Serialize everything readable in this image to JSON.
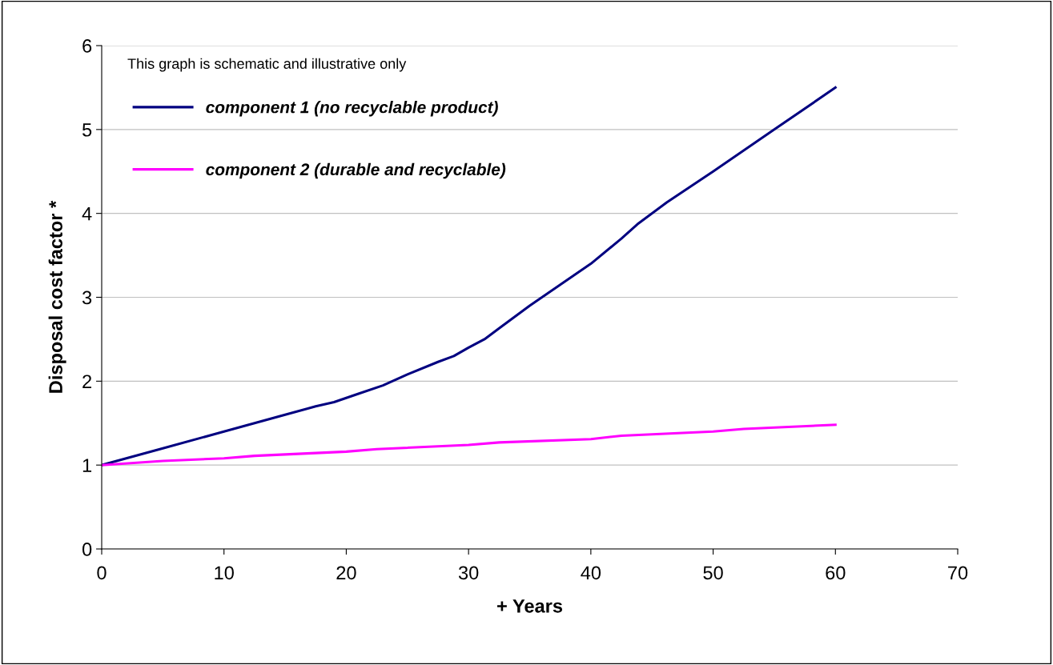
{
  "chart_data": {
    "type": "line",
    "xlabel": "+ Years",
    "ylabel": "Disposal cost factor *",
    "annotations": [
      "This graph is schematic and illustrative only"
    ],
    "series": [
      {
        "name": "component 1 (no recyclable product)",
        "color": "#000080",
        "x": [
          0,
          5,
          10,
          12.5,
          15,
          17.5,
          19,
          20,
          21,
          23,
          25,
          27.5,
          28.8,
          30,
          31.3,
          32.5,
          35,
          37.5,
          40,
          42.5,
          43.8,
          46.2,
          50,
          55,
          60
        ],
        "values": [
          1,
          1.2,
          1.4,
          1.5,
          1.6,
          1.7,
          1.75,
          1.8,
          1.85,
          1.95,
          2.08,
          2.23,
          2.3,
          2.4,
          2.5,
          2.63,
          2.9,
          3.15,
          3.4,
          3.7,
          3.87,
          4.13,
          4.5,
          5,
          5.5
        ]
      },
      {
        "name": "component 2 (durable and recyclable)",
        "color": "#ff00ff",
        "x": [
          0,
          5,
          10,
          12.5,
          20,
          22.5,
          30,
          32.5,
          40,
          42.5,
          50,
          52.5,
          60
        ],
        "values": [
          1,
          1.05,
          1.08,
          1.11,
          1.16,
          1.19,
          1.24,
          1.27,
          1.31,
          1.35,
          1.4,
          1.43,
          1.48
        ]
      }
    ],
    "xlim": [
      0,
      70
    ],
    "xticks": [
      0,
      10,
      20,
      30,
      40,
      50,
      60,
      70
    ],
    "ylim": [
      0,
      6
    ],
    "yticks": [
      0,
      1,
      2,
      3,
      4,
      5,
      6
    ],
    "grid": "y",
    "legend": "top left",
    "marker": "none",
    "line_style": "solid"
  }
}
